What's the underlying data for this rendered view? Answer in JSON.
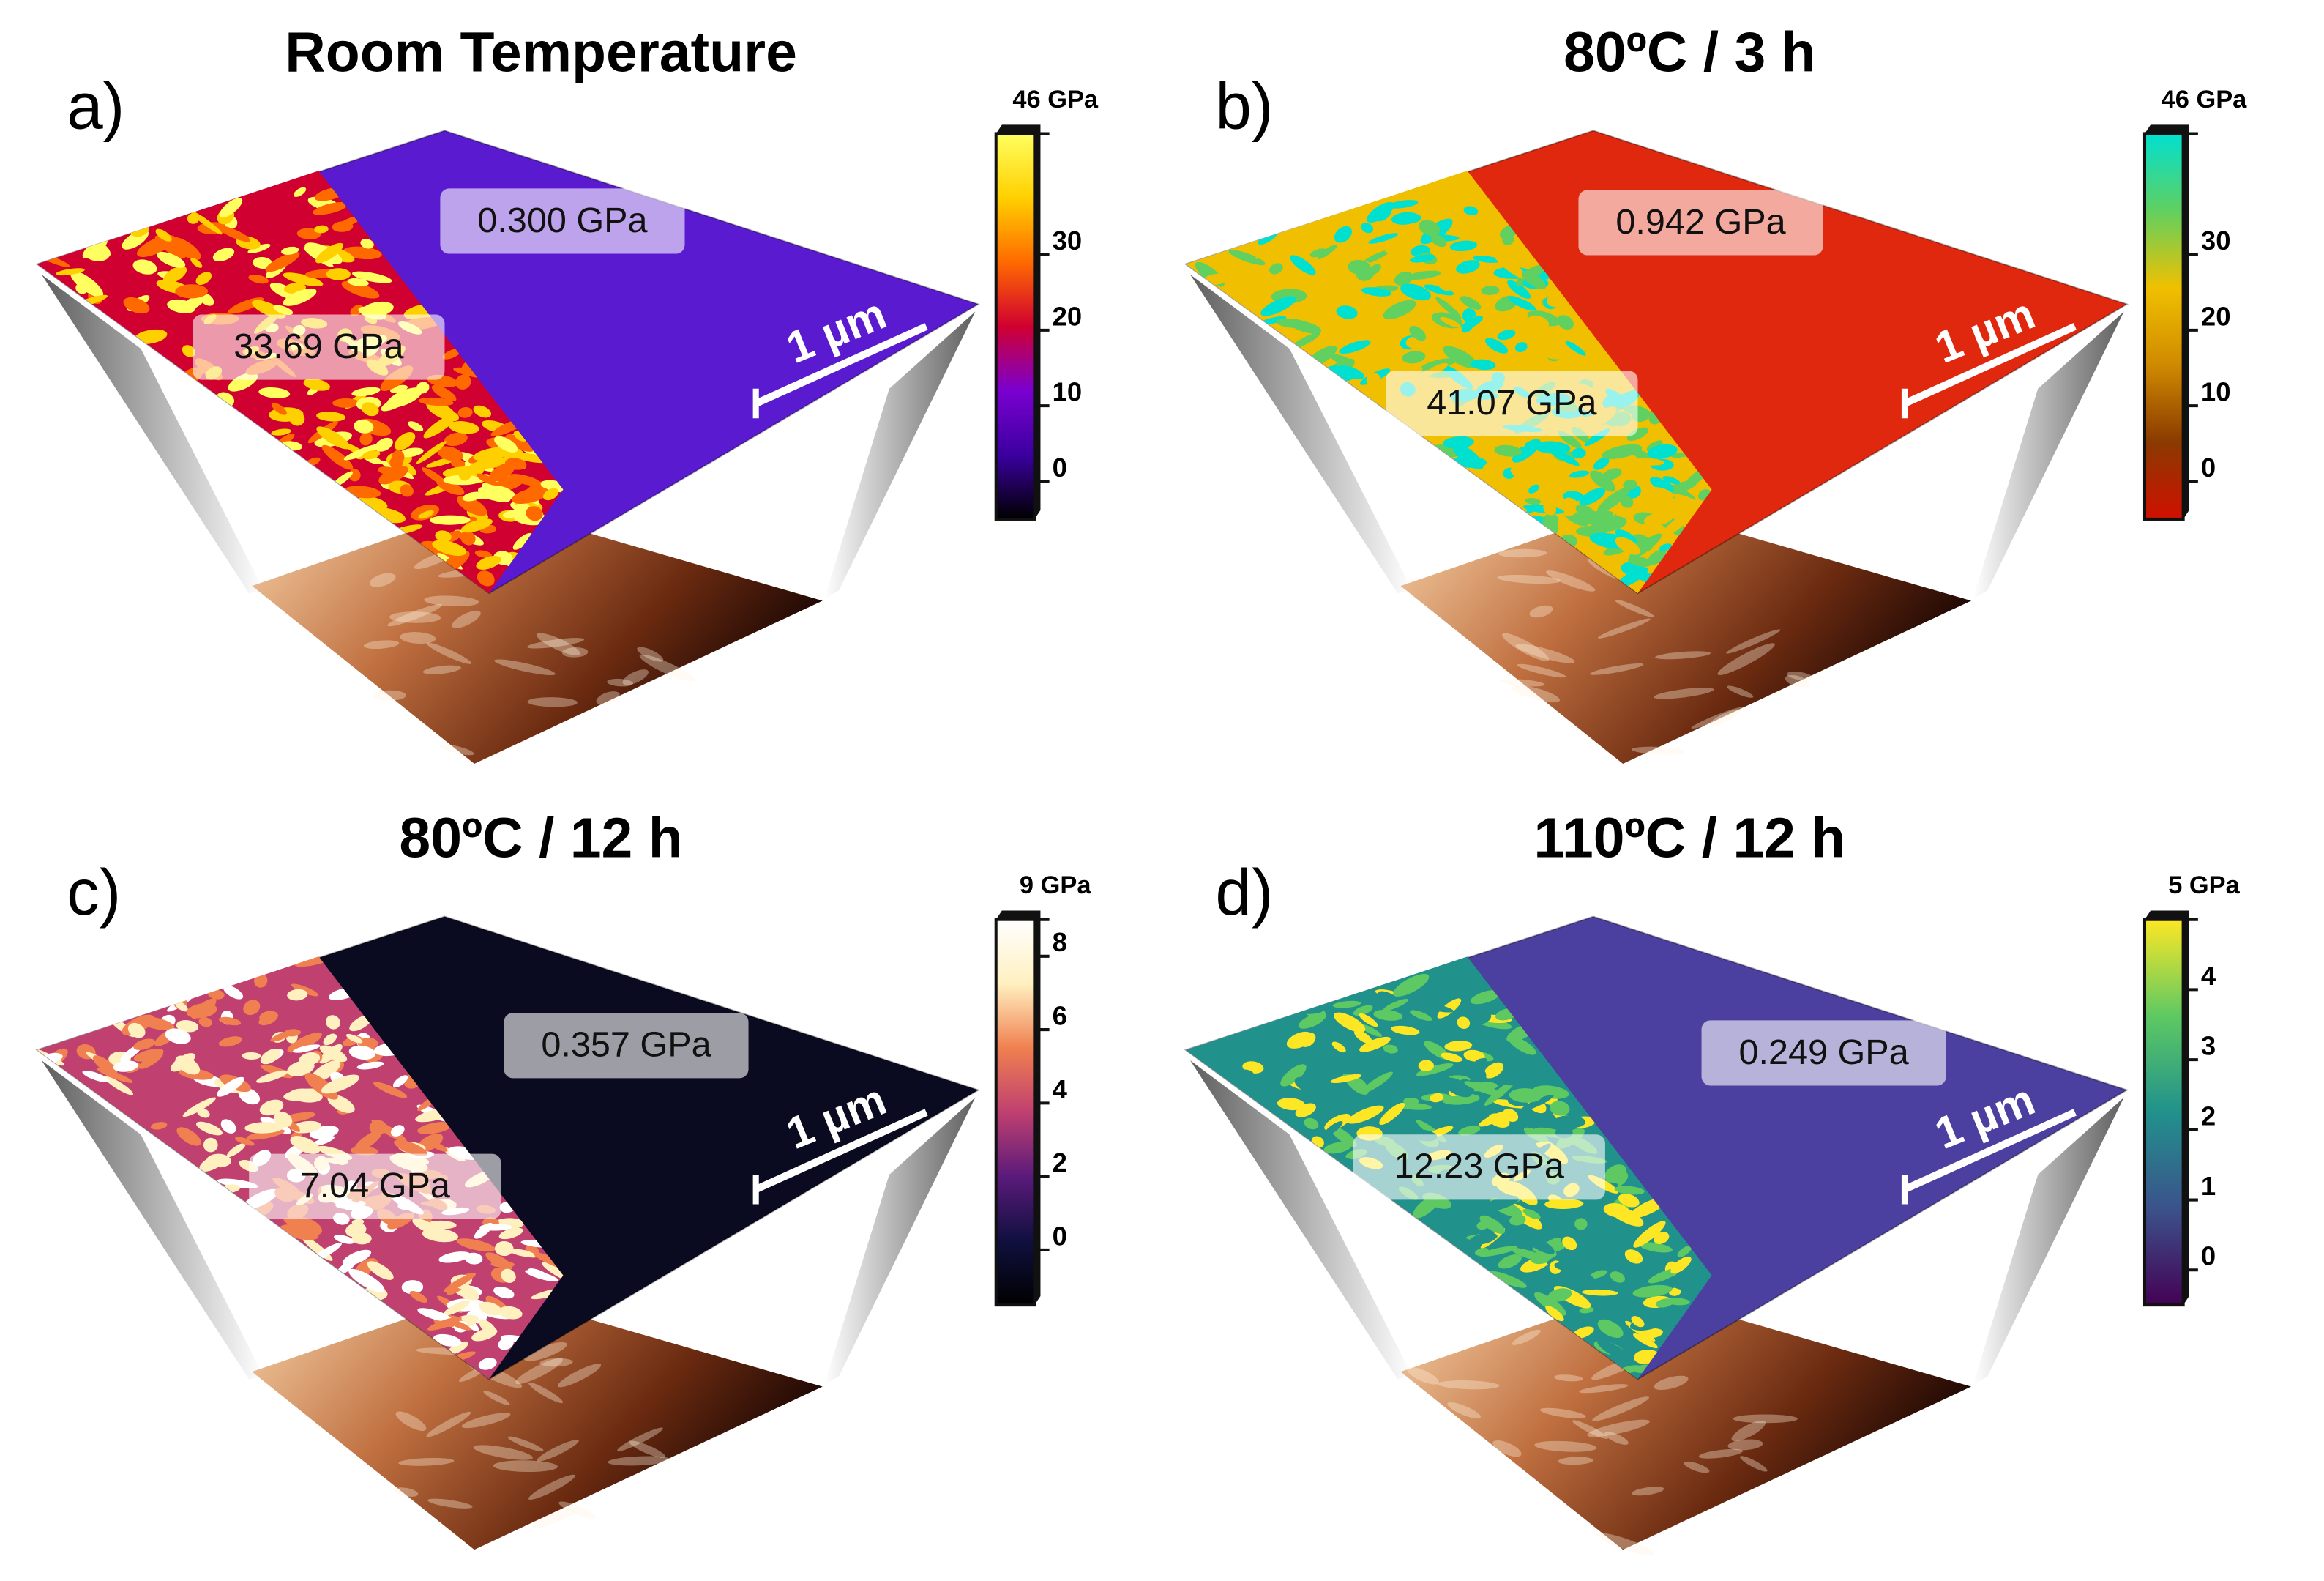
{
  "panels": [
    {
      "letter": "a)",
      "title": "Room Temperature",
      "low_label": "0.300 GPa",
      "high_label": "33.69 GPa",
      "scale_bar": "1 µm",
      "flat_color": "#5a1ad0",
      "colorbar": {
        "lim": [
          -5,
          46
        ],
        "ticks": [
          0,
          10,
          20,
          30,
          {
            "value": 46,
            "label": "46 GPa"
          }
        ],
        "colors": [
          "#000000",
          "#3b00a0",
          "#7a00d0",
          "#d00030",
          "#ff6a00",
          "#ffd000",
          "#ffff60"
        ]
      }
    },
    {
      "letter": "b)",
      "title": "80ºC / 3 h",
      "low_label": "0.942 GPa",
      "high_label": "41.07 GPa",
      "scale_bar": "1 µm",
      "flat_color": "#e0280e",
      "colorbar": {
        "lim": [
          -5,
          46
        ],
        "ticks": [
          0,
          10,
          20,
          30,
          {
            "value": 46,
            "label": "46 GPa"
          }
        ],
        "colors": [
          "#d01000",
          "#8a3a00",
          "#d08a00",
          "#f0c000",
          "#60d060",
          "#00e0d0"
        ]
      }
    },
    {
      "letter": "c)",
      "title": "80ºC / 12 h",
      "low_label": "0.357 GPa",
      "high_label": "7.04 GPa",
      "scale_bar": "1 µm",
      "flat_color": "#0a0a20",
      "colorbar": {
        "lim": [
          -1.5,
          9
        ],
        "ticks": [
          0,
          2,
          4,
          6,
          8,
          {
            "value": 9,
            "label": "9 GPa"
          }
        ],
        "colors": [
          "#000000",
          "#101040",
          "#5a1a7a",
          "#c04070",
          "#f08050",
          "#fff0c0",
          "#ffffff"
        ]
      }
    },
    {
      "letter": "d)",
      "title": "110ºC / 12 h",
      "low_label": "0.249 GPa",
      "high_label": "12.23 GPa",
      "scale_bar": "1 µm",
      "flat_color": "#4b3fa0",
      "colorbar": {
        "lim": [
          -0.5,
          5
        ],
        "ticks": [
          0,
          1,
          2,
          3,
          4,
          {
            "value": 5,
            "label": "5 GPa"
          }
        ],
        "colors": [
          "#440154",
          "#3b528b",
          "#21918c",
          "#5ec962",
          "#fde725"
        ]
      }
    }
  ]
}
